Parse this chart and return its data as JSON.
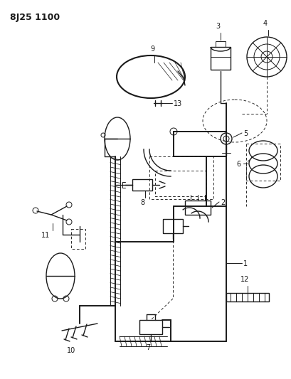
{
  "title": "8J25 1100",
  "bg_color": "#ffffff",
  "line_color": "#1a1a1a",
  "fig_width": 4.09,
  "fig_height": 5.33,
  "dpi": 100,
  "lw_main": 1.4,
  "lw_med": 1.0,
  "lw_thin": 0.7,
  "lw_dash": 0.65
}
